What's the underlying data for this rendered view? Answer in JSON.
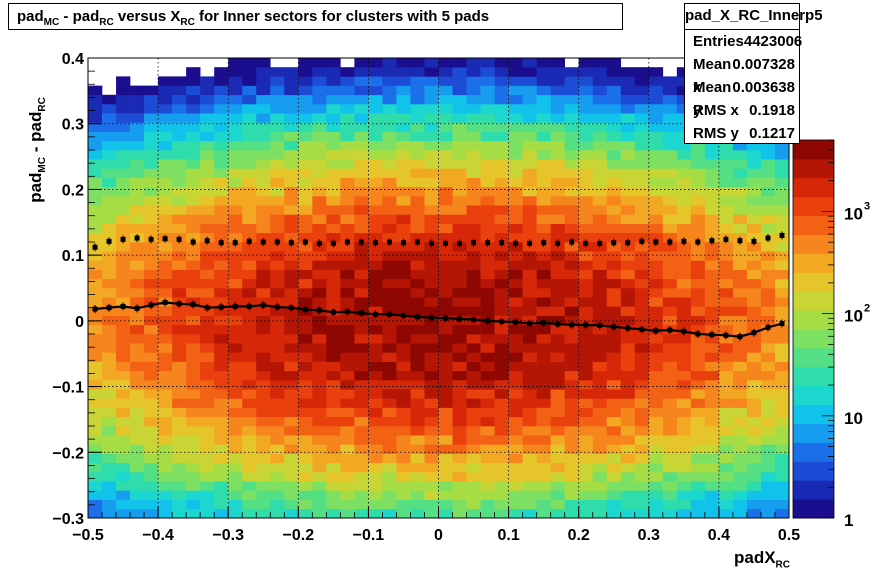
{
  "title": {
    "parts": [
      "pad",
      "MC",
      " - pad",
      "RC",
      " versus X",
      "RC",
      " for Inner sectors for clusters with 5 pads"
    ]
  },
  "stats": {
    "name": "pad_X_RC_Innerp5",
    "rows": [
      {
        "label": "Entries",
        "value": "4423006"
      },
      {
        "label": "Mean x",
        "value": "0.007328"
      },
      {
        "label": "Mean y",
        "value": "0.003638"
      },
      {
        "label": "RMS x",
        "value": "0.1918"
      },
      {
        "label": "RMS y",
        "value": "0.1217"
      }
    ]
  },
  "axes": {
    "ylabel_parts": [
      "pad",
      "MC",
      " - pad",
      "RC"
    ],
    "xlabel_parts": [
      "padX",
      "RC"
    ]
  },
  "chart_data": {
    "type": "heatmap",
    "xlim": [
      -0.5,
      0.5
    ],
    "ylim": [
      -0.3,
      0.4
    ],
    "x_ticks": [
      "−0.5",
      "−0.4",
      "−0.3",
      "−0.2",
      "−0.1",
      "0",
      "0.1",
      "0.2",
      "0.3",
      "0.4",
      "0.5"
    ],
    "y_ticks": [
      "−0.3",
      "−0.2",
      "−0.1",
      "0",
      "0.1",
      "0.2",
      "0.3",
      "0.4"
    ],
    "x_tick_values": [
      -0.5,
      -0.4,
      -0.3,
      -0.2,
      -0.1,
      0,
      0.1,
      0.2,
      0.3,
      0.4,
      0.5
    ],
    "y_tick_values": [
      -0.3,
      -0.2,
      -0.1,
      0,
      0.1,
      0.2,
      0.3,
      0.4
    ],
    "grid": true,
    "z_scale": "log",
    "zlim": [
      1,
      5000
    ],
    "z_ticks": [
      {
        "value": 1,
        "label": "1"
      },
      {
        "value": 10,
        "label": "10"
      },
      {
        "value": 100,
        "label": "10",
        "exp": "2"
      },
      {
        "value": 1000,
        "label": "10",
        "exp": "3"
      }
    ],
    "palette": [
      "#1a0d8e",
      "#1b2ab5",
      "#1c4bd6",
      "#1b70ea",
      "#169df0",
      "#11c3ea",
      "#1bd7cf",
      "#2fdcab",
      "#54df85",
      "#7ee063",
      "#a6dd45",
      "#c9d534",
      "#e6c52a",
      "#f3a823",
      "#f5851c",
      "#f36114",
      "#e9400e",
      "#d62708",
      "#b51504",
      "#8e0702"
    ],
    "bins": {
      "nx": 50,
      "ny": 50
    },
    "model": {
      "peak": 4000,
      "sigma_x": 0.23,
      "sigma_y": 0.095
    },
    "series": [
      {
        "name": "mean",
        "x": [
          -0.49,
          -0.47,
          -0.45,
          -0.43,
          -0.41,
          -0.39,
          -0.37,
          -0.35,
          -0.33,
          -0.31,
          -0.29,
          -0.27,
          -0.25,
          -0.23,
          -0.21,
          -0.19,
          -0.17,
          -0.15,
          -0.13,
          -0.11,
          -0.09,
          -0.07,
          -0.05,
          -0.03,
          -0.01,
          0.01,
          0.03,
          0.05,
          0.07,
          0.09,
          0.11,
          0.13,
          0.15,
          0.17,
          0.19,
          0.21,
          0.23,
          0.25,
          0.27,
          0.29,
          0.31,
          0.33,
          0.35,
          0.37,
          0.39,
          0.41,
          0.43,
          0.45,
          0.47,
          0.49
        ],
        "y": [
          0.018,
          0.02,
          0.022,
          0.019,
          0.024,
          0.028,
          0.026,
          0.025,
          0.02,
          0.021,
          0.022,
          0.022,
          0.024,
          0.021,
          0.02,
          0.017,
          0.016,
          0.013,
          0.014,
          0.012,
          0.01,
          0.01,
          0.008,
          0.006,
          0.005,
          0.004,
          0.003,
          0.002,
          0.0,
          -0.001,
          -0.002,
          -0.004,
          -0.003,
          -0.005,
          -0.006,
          -0.006,
          -0.007,
          -0.009,
          -0.011,
          -0.013,
          -0.015,
          -0.014,
          -0.016,
          -0.02,
          -0.021,
          -0.022,
          -0.024,
          -0.018,
          -0.01,
          -0.004
        ]
      },
      {
        "name": "rms",
        "x": [
          -0.49,
          -0.47,
          -0.45,
          -0.43,
          -0.41,
          -0.39,
          -0.37,
          -0.35,
          -0.33,
          -0.31,
          -0.29,
          -0.27,
          -0.25,
          -0.23,
          -0.21,
          -0.19,
          -0.17,
          -0.15,
          -0.13,
          -0.11,
          -0.09,
          -0.07,
          -0.05,
          -0.03,
          -0.01,
          0.01,
          0.03,
          0.05,
          0.07,
          0.09,
          0.11,
          0.13,
          0.15,
          0.17,
          0.19,
          0.21,
          0.23,
          0.25,
          0.27,
          0.29,
          0.31,
          0.33,
          0.35,
          0.37,
          0.39,
          0.41,
          0.43,
          0.45,
          0.47,
          0.49
        ],
        "y": [
          0.112,
          0.121,
          0.124,
          0.126,
          0.124,
          0.125,
          0.124,
          0.12,
          0.122,
          0.119,
          0.119,
          0.121,
          0.12,
          0.12,
          0.119,
          0.12,
          0.118,
          0.118,
          0.12,
          0.12,
          0.119,
          0.12,
          0.119,
          0.12,
          0.118,
          0.118,
          0.118,
          0.119,
          0.119,
          0.119,
          0.118,
          0.118,
          0.119,
          0.118,
          0.12,
          0.118,
          0.118,
          0.119,
          0.119,
          0.121,
          0.12,
          0.12,
          0.121,
          0.12,
          0.122,
          0.124,
          0.122,
          0.121,
          0.126,
          0.13
        ]
      }
    ]
  }
}
